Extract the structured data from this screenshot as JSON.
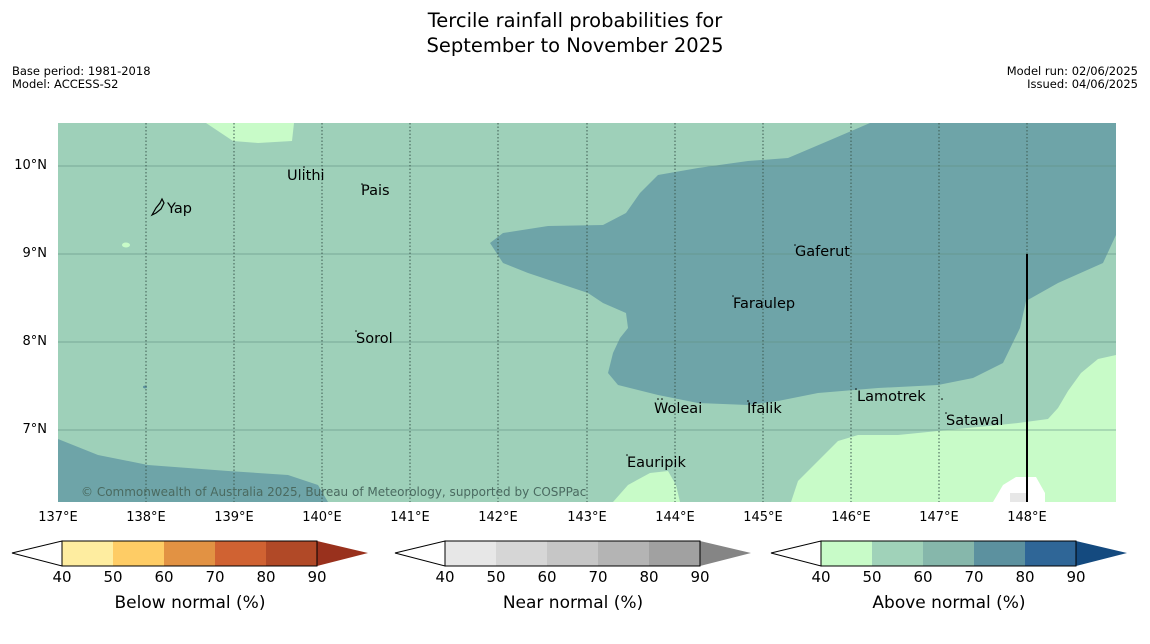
{
  "title_line1": "Tercile rainfall probabilities for",
  "title_line2": "September to November 2025",
  "meta_left": {
    "base_period": "Base period: 1981-2018",
    "model": "Model: ACCESS-S2"
  },
  "meta_right": {
    "model_run": "Model run: 02/06/2025",
    "issued": "Issued: 04/06/2025"
  },
  "copyright": "© Commonwealth of Australia 2025, Bureau of Meteorology, supported by COSPPac",
  "lat_labels": [
    "10°N",
    "9°N",
    "8°N",
    "7°N"
  ],
  "lon_labels": [
    "137°E",
    "138°E",
    "139°E",
    "140°E",
    "141°E",
    "142°E",
    "143°E",
    "144°E",
    "145°E",
    "146°E",
    "147°E",
    "148°E"
  ],
  "places": {
    "ulithi": "Ulithi",
    "pais": "Pais",
    "yap": "Yap",
    "gaferut": "Gaferut",
    "faraulep": "Faraulep",
    "sorol": "Sorol",
    "lamotrek": "Lamotrek",
    "woleai": "Woleai",
    "ifalik": "Ifalik",
    "satawal": "Satawal",
    "eauripik": "Eauripik"
  },
  "colorbars": {
    "below": {
      "label": "Below normal (%)",
      "colors": [
        "#ffffff",
        "#feeda0",
        "#fecc65",
        "#e29243",
        "#d06232",
        "#b14927",
        "#99311d"
      ]
    },
    "near": {
      "label": "Near normal (%)",
      "colors": [
        "#ffffff",
        "#e7e7e7",
        "#d6d6d6",
        "#c6c6c6",
        "#b4b4b4",
        "#a1a1a1",
        "#858585"
      ]
    },
    "above": {
      "label": "Above normal (%)",
      "colors": [
        "#ffffff",
        "#c8fbc8",
        "#a0d2b9",
        "#86b7ab",
        "#5c919f",
        "#2f6697",
        "#144a7f"
      ]
    },
    "ticks": [
      "40",
      "50",
      "60",
      "70",
      "80",
      "90"
    ]
  }
}
